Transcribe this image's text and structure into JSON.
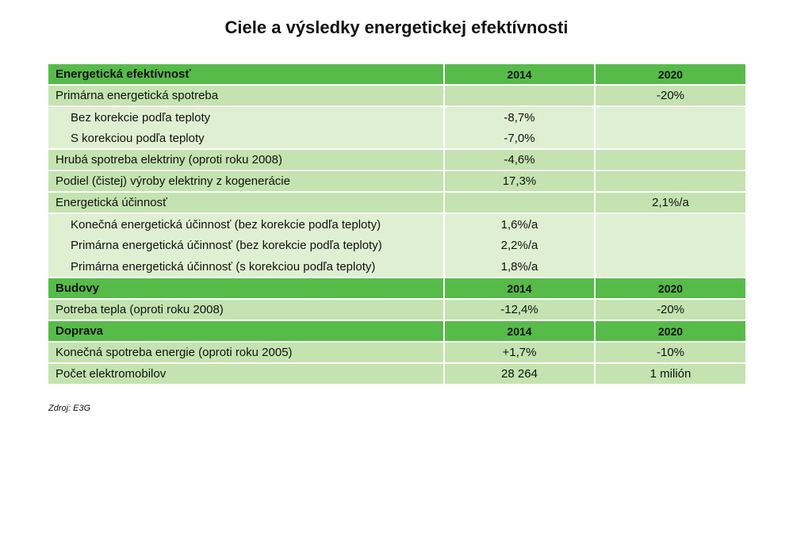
{
  "title": "Ciele a výsledky energetickej efektívnosti",
  "source": "Zdroj: E3G",
  "sections": [
    {
      "header": {
        "label": "Energetická efektívnosť",
        "col1": "2014",
        "col2": "2020"
      },
      "rows": [
        {
          "label": "Primárna energetická spotreba",
          "v2014": "",
          "v2020": "-20%",
          "level": "mid"
        },
        {
          "label": "Bez korekcie podľa teploty",
          "v2014": "-8,7%",
          "v2020": "",
          "level": "sub"
        },
        {
          "label": "S korekciou podľa teploty",
          "v2014": "-7,0%",
          "v2020": "",
          "level": "sub"
        },
        {
          "label": "Hrubá spotreba elektriny (oproti roku 2008)",
          "v2014": "-4,6%",
          "v2020": "",
          "level": "mid"
        },
        {
          "label": "Podiel (čistej) výroby elektriny z kogenerácie",
          "v2014": "17,3%",
          "v2020": "",
          "level": "mid"
        },
        {
          "label": "Energetická účinnosť",
          "v2014": "",
          "v2020": "2,1%/a",
          "level": "mid"
        },
        {
          "label": "Konečná energetická účinnosť (bez korekcie podľa teploty)",
          "v2014": "1,6%/a",
          "v2020": "",
          "level": "sub"
        },
        {
          "label": "Primárna energetická účinnosť (bez korekcie podľa teploty)",
          "v2014": "2,2%/a",
          "v2020": "",
          "level": "sub"
        },
        {
          "label": "Primárna energetická účinnosť (s korekciou podľa teploty)",
          "v2014": "1,8%/a",
          "v2020": "",
          "level": "sub"
        }
      ]
    },
    {
      "header": {
        "label": "Budovy",
        "col1": "2014",
        "col2": "2020"
      },
      "rows": [
        {
          "label": "Potreba tepla (oproti roku 2008)",
          "v2014": "-12,4%",
          "v2020": "-20%",
          "level": "mid"
        }
      ]
    },
    {
      "header": {
        "label": "Doprava",
        "col1": "2014",
        "col2": "2020"
      },
      "rows": [
        {
          "label": "Konečná spotreba energie (oproti roku 2005)",
          "v2014": "+1,7%",
          "v2020": "-10%",
          "level": "mid"
        },
        {
          "label": "Počet elektromobilov",
          "v2014": "28 264",
          "v2020": "1 milión",
          "level": "mid"
        }
      ]
    }
  ]
}
